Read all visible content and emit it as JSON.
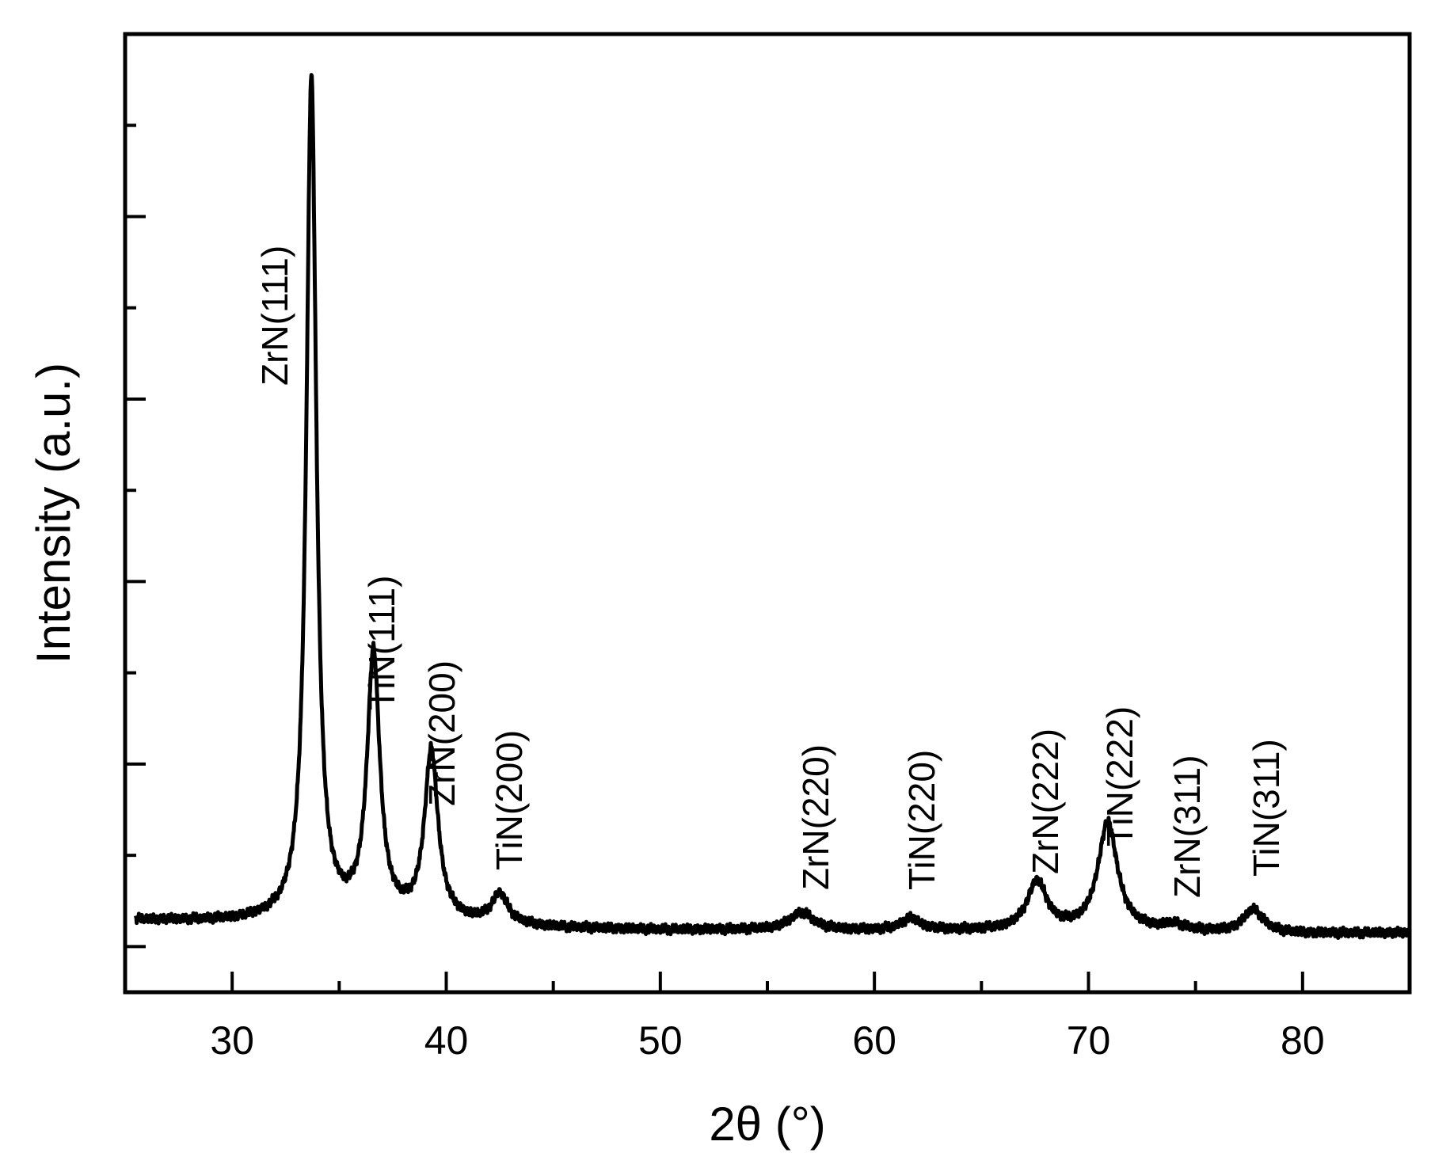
{
  "chart_data": {
    "type": "line",
    "title": "",
    "xlabel": "2θ (°)",
    "ylabel": "Intensity (a.u.)",
    "xlim": [
      25,
      85
    ],
    "ylim": [
      -0.05,
      1.0
    ],
    "x_ticks": [
      30,
      40,
      50,
      60,
      70,
      80
    ],
    "x_tick_labels": [
      "30",
      "40",
      "50",
      "60",
      "70",
      "80"
    ],
    "y_tick_labels_shown": false,
    "grid": false,
    "legend": "none",
    "line_color": "#000000",
    "baseline": [
      [
        25.5,
        0.029
      ],
      [
        30,
        0.027
      ],
      [
        35,
        0.027
      ],
      [
        40,
        0.025
      ],
      [
        45,
        0.02
      ],
      [
        50,
        0.018
      ],
      [
        55,
        0.018
      ],
      [
        60,
        0.017
      ],
      [
        65,
        0.017
      ],
      [
        70,
        0.016
      ],
      [
        75,
        0.015
      ],
      [
        80,
        0.014
      ],
      [
        85,
        0.015
      ]
    ],
    "peaks": [
      {
        "label": "ZrN(111)",
        "x": 33.7,
        "y": 0.95
      },
      {
        "label": "TiN(111)",
        "x": 36.6,
        "y": 0.315
      },
      {
        "label": "ZrN(200)",
        "x": 39.3,
        "y": 0.21
      },
      {
        "label": "TiN(200)",
        "x": 42.5,
        "y": 0.055
      },
      {
        "label": "ZrN(220)",
        "x": 56.6,
        "y": 0.037
      },
      {
        "label": "TiN(220)",
        "x": 61.7,
        "y": 0.03
      },
      {
        "label": "ZrN(222)",
        "x": 67.6,
        "y": 0.07
      },
      {
        "label": "TiN(222)",
        "x": 70.9,
        "y": 0.135
      },
      {
        "label": "ZrN(311)",
        "x": 74.0,
        "y": 0.022
      },
      {
        "label": "TiN(311)",
        "x": 77.7,
        "y": 0.04
      }
    ]
  }
}
